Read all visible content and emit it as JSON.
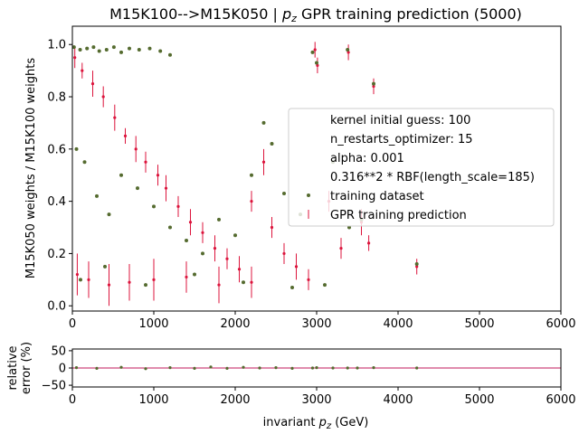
{
  "chart_data": [
    {
      "type": "scatter",
      "title": "M15K100-->M15K050 | p_z GPR training prediction (5000)",
      "title_parts": {
        "before": "M15K100-->M15K050 | ",
        "var_main": "p",
        "var_sub": "z",
        "after": " GPR training prediction (5000)"
      },
      "ylabel": "M15K050 weights / M15K100 weights",
      "xlim": [
        0,
        6000
      ],
      "ylim": [
        -0.02,
        1.07
      ],
      "x_ticks": [
        0,
        1000,
        2000,
        3000,
        4000,
        5000,
        6000
      ],
      "y_ticks": [
        0.0,
        0.2,
        0.4,
        0.6,
        0.8,
        1.0
      ],
      "x_tick_labels": [
        "0",
        "1000",
        "2000",
        "3000",
        "4000",
        "5000",
        "6000"
      ],
      "y_tick_labels": [
        "0.0",
        "0.2",
        "0.4",
        "0.6",
        "0.8",
        "1.0"
      ],
      "grid": false,
      "legend_position": "center-right",
      "legend_info": [
        "kernel initial guess: 100",
        "n_restarts_optimizer: 15",
        "alpha: 0.001",
        "0.316**2 * RBF(length_scale=185)"
      ],
      "series": [
        {
          "name": "training dataset",
          "marker": "dot",
          "color": "#556b2f",
          "points": [
            [
              20,
              0.99
            ],
            [
              95,
              0.98
            ],
            [
              180,
              0.985
            ],
            [
              260,
              0.99
            ],
            [
              330,
              0.975
            ],
            [
              420,
              0.98
            ],
            [
              510,
              0.99
            ],
            [
              600,
              0.97
            ],
            [
              700,
              0.985
            ],
            [
              820,
              0.98
            ],
            [
              950,
              0.985
            ],
            [
              1080,
              0.975
            ],
            [
              1200,
              0.96
            ],
            [
              50,
              0.6
            ],
            [
              150,
              0.55
            ],
            [
              300,
              0.42
            ],
            [
              450,
              0.35
            ],
            [
              600,
              0.5
            ],
            [
              800,
              0.45
            ],
            [
              1000,
              0.38
            ],
            [
              1200,
              0.3
            ],
            [
              1400,
              0.25
            ],
            [
              1600,
              0.2
            ],
            [
              1800,
              0.33
            ],
            [
              2000,
              0.27
            ],
            [
              2200,
              0.5
            ],
            [
              2350,
              0.7
            ],
            [
              2450,
              0.62
            ],
            [
              2600,
              0.43
            ],
            [
              2800,
              0.35
            ],
            [
              2950,
              0.97
            ],
            [
              3000,
              0.93
            ],
            [
              3200,
              0.55
            ],
            [
              3400,
              0.3
            ],
            [
              3700,
              0.85
            ],
            [
              4230,
              0.16
            ],
            [
              3380,
              0.98
            ],
            [
              3550,
              0.33
            ],
            [
              100,
              0.1
            ],
            [
              400,
              0.15
            ],
            [
              900,
              0.08
            ],
            [
              1500,
              0.12
            ],
            [
              2100,
              0.09
            ],
            [
              2700,
              0.07
            ],
            [
              3100,
              0.08
            ]
          ]
        },
        {
          "name": "GPR training prediction",
          "marker": "errorbar",
          "color": "#dc143c",
          "points": [
            [
              30,
              0.95,
              0.04
            ],
            [
              120,
              0.9,
              0.03
            ],
            [
              250,
              0.85,
              0.05
            ],
            [
              380,
              0.8,
              0.04
            ],
            [
              520,
              0.72,
              0.05
            ],
            [
              650,
              0.65,
              0.03
            ],
            [
              780,
              0.6,
              0.05
            ],
            [
              900,
              0.55,
              0.04
            ],
            [
              1050,
              0.5,
              0.04
            ],
            [
              1150,
              0.45,
              0.05
            ],
            [
              1300,
              0.38,
              0.04
            ],
            [
              1450,
              0.32,
              0.05
            ],
            [
              1600,
              0.28,
              0.04
            ],
            [
              1750,
              0.22,
              0.05
            ],
            [
              1900,
              0.18,
              0.04
            ],
            [
              2050,
              0.14,
              0.05
            ],
            [
              2200,
              0.4,
              0.04
            ],
            [
              2350,
              0.55,
              0.05
            ],
            [
              2450,
              0.3,
              0.04
            ],
            [
              2600,
              0.2,
              0.04
            ],
            [
              2750,
              0.15,
              0.05
            ],
            [
              2900,
              0.1,
              0.04
            ],
            [
              2980,
              0.98,
              0.03
            ],
            [
              3010,
              0.92,
              0.03
            ],
            [
              3150,
              0.4,
              0.04
            ],
            [
              3300,
              0.22,
              0.04
            ],
            [
              3390,
              0.97,
              0.03
            ],
            [
              3550,
              0.32,
              0.05
            ],
            [
              3700,
              0.84,
              0.03
            ],
            [
              4230,
              0.15,
              0.03
            ],
            [
              3640,
              0.24,
              0.03
            ],
            [
              60,
              0.12,
              0.08
            ],
            [
              200,
              0.1,
              0.07
            ],
            [
              450,
              0.08,
              0.08
            ],
            [
              700,
              0.09,
              0.07
            ],
            [
              1000,
              0.1,
              0.08
            ],
            [
              1400,
              0.11,
              0.06
            ],
            [
              1800,
              0.08,
              0.07
            ],
            [
              2200,
              0.09,
              0.06
            ]
          ]
        }
      ]
    },
    {
      "type": "scatter",
      "ylabel_line1": "relative",
      "ylabel_line2": "error (%)",
      "xlabel": "invariant p_z (GeV)",
      "xlabel_parts": {
        "before": "invariant ",
        "var_main": "p",
        "var_sub": "z",
        "after": " (GeV)"
      },
      "xlim": [
        0,
        6000
      ],
      "ylim": [
        -55,
        55
      ],
      "x_ticks": [
        0,
        1000,
        2000,
        3000,
        4000,
        5000,
        6000
      ],
      "y_ticks": [
        -50,
        0,
        50
      ],
      "x_tick_labels": [
        "0",
        "1000",
        "2000",
        "3000",
        "4000",
        "5000",
        "6000"
      ],
      "y_tick_labels": [
        "−50",
        "0",
        "50"
      ],
      "reference_line": 0,
      "series": [
        {
          "name": "relative error",
          "color": "#556b2f",
          "points": [
            [
              50,
              1
            ],
            [
              300,
              -1
            ],
            [
              600,
              2
            ],
            [
              900,
              -2
            ],
            [
              1200,
              1
            ],
            [
              1500,
              -1
            ],
            [
              1700,
              3
            ],
            [
              1900,
              -1
            ],
            [
              2100,
              2
            ],
            [
              2300,
              0
            ],
            [
              2500,
              1
            ],
            [
              2700,
              -1
            ],
            [
              3000,
              1
            ],
            [
              3200,
              0
            ],
            [
              3500,
              0
            ],
            [
              3700,
              1
            ],
            [
              4230,
              0
            ],
            [
              2950,
              0
            ],
            [
              3380,
              0
            ]
          ]
        }
      ]
    }
  ]
}
